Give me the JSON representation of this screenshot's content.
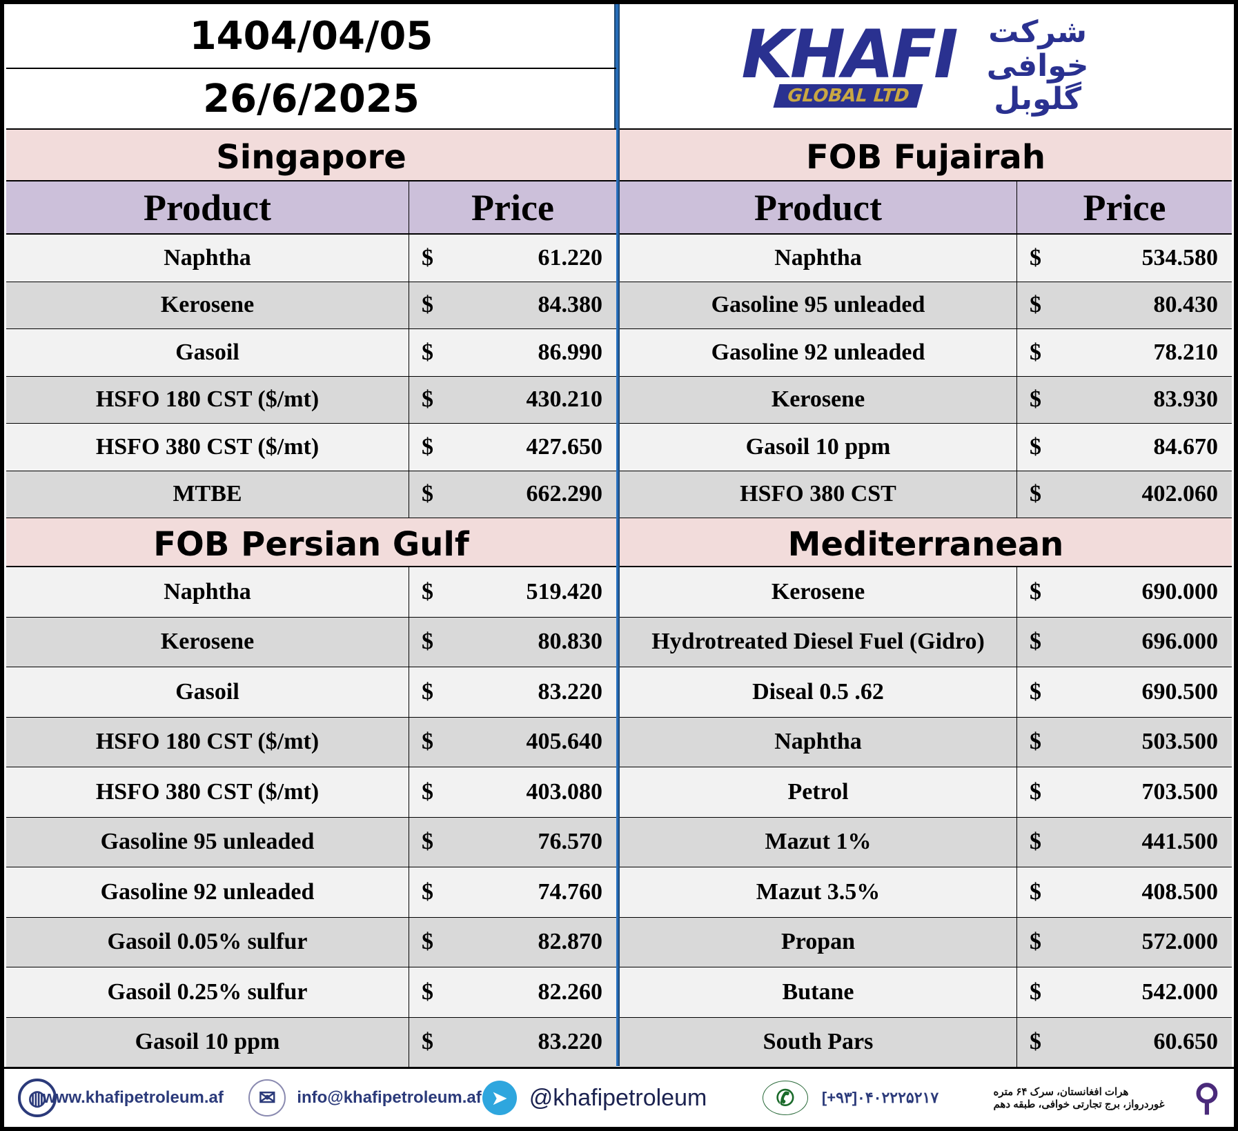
{
  "header": {
    "date_persian": "1404/04/05",
    "date_gregorian": "26/6/2025",
    "logo_text": "KHAFI",
    "logo_sub": "GLOBAL LTD",
    "logo_fa": "شرکت خوافی گلوبل"
  },
  "columns": {
    "product": "Product",
    "price": "Price"
  },
  "currency": "$",
  "sections": {
    "singapore": {
      "title": "Singapore",
      "rows": [
        [
          "Naphtha",
          "61.220"
        ],
        [
          "Kerosene",
          "84.380"
        ],
        [
          "Gasoil",
          "86.990"
        ],
        [
          "HSFO 180 CST ($/mt)",
          "430.210"
        ],
        [
          "HSFO 380 CST ($/mt)",
          "427.650"
        ],
        [
          "MTBE",
          "662.290"
        ]
      ]
    },
    "fujairah": {
      "title": "FOB Fujairah",
      "rows": [
        [
          "Naphtha",
          "534.580"
        ],
        [
          "Gasoline 95 unleaded",
          "80.430"
        ],
        [
          "Gasoline 92 unleaded",
          "78.210"
        ],
        [
          "Kerosene",
          "83.930"
        ],
        [
          "Gasoil 10 ppm",
          "84.670"
        ],
        [
          "HSFO 380 CST",
          "402.060"
        ]
      ]
    },
    "persian_gulf": {
      "title": "FOB Persian Gulf",
      "rows": [
        [
          "Naphtha",
          "519.420"
        ],
        [
          "Kerosene",
          "80.830"
        ],
        [
          "Gasoil",
          "83.220"
        ],
        [
          "HSFO 180 CST ($/mt)",
          "405.640"
        ],
        [
          "HSFO 380 CST ($/mt)",
          "403.080"
        ],
        [
          "Gasoline 95 unleaded",
          "76.570"
        ],
        [
          "Gasoline 92 unleaded",
          "74.760"
        ],
        [
          "Gasoil 0.05% sulfur",
          "82.870"
        ],
        [
          "Gasoil 0.25% sulfur",
          "82.260"
        ],
        [
          "Gasoil 10 ppm",
          "83.220"
        ]
      ]
    },
    "mediterranean": {
      "title": "Mediterranean",
      "rows": [
        [
          "Kerosene",
          "690.000"
        ],
        [
          "Hydrotreated Diesel Fuel (Gidro)",
          "696.000"
        ],
        [
          "Diseal 0.5 .62",
          "690.500"
        ],
        [
          "Naphtha",
          "503.500"
        ],
        [
          "Petrol",
          "703.500"
        ],
        [
          "Mazut 1%",
          "441.500"
        ],
        [
          "Mazut 3.5%",
          "408.500"
        ],
        [
          "Propan",
          "572.000"
        ],
        [
          "Butane",
          "542.000"
        ],
        [
          "South Pars",
          "60.650"
        ]
      ]
    }
  },
  "footer": {
    "website": "www.khafipetroleum.af",
    "email": "info@khafipetroleum.af",
    "telegram": "@khafipetroleum",
    "phone": "[+۹۳]۰۴۰۲۲۲۵۲۱۷",
    "address_line1": "هرات افغانستان، سرک ۶۴ متره",
    "address_line2": "غوردرواز، برج تجارتی خوافی، طبقه دهم"
  }
}
